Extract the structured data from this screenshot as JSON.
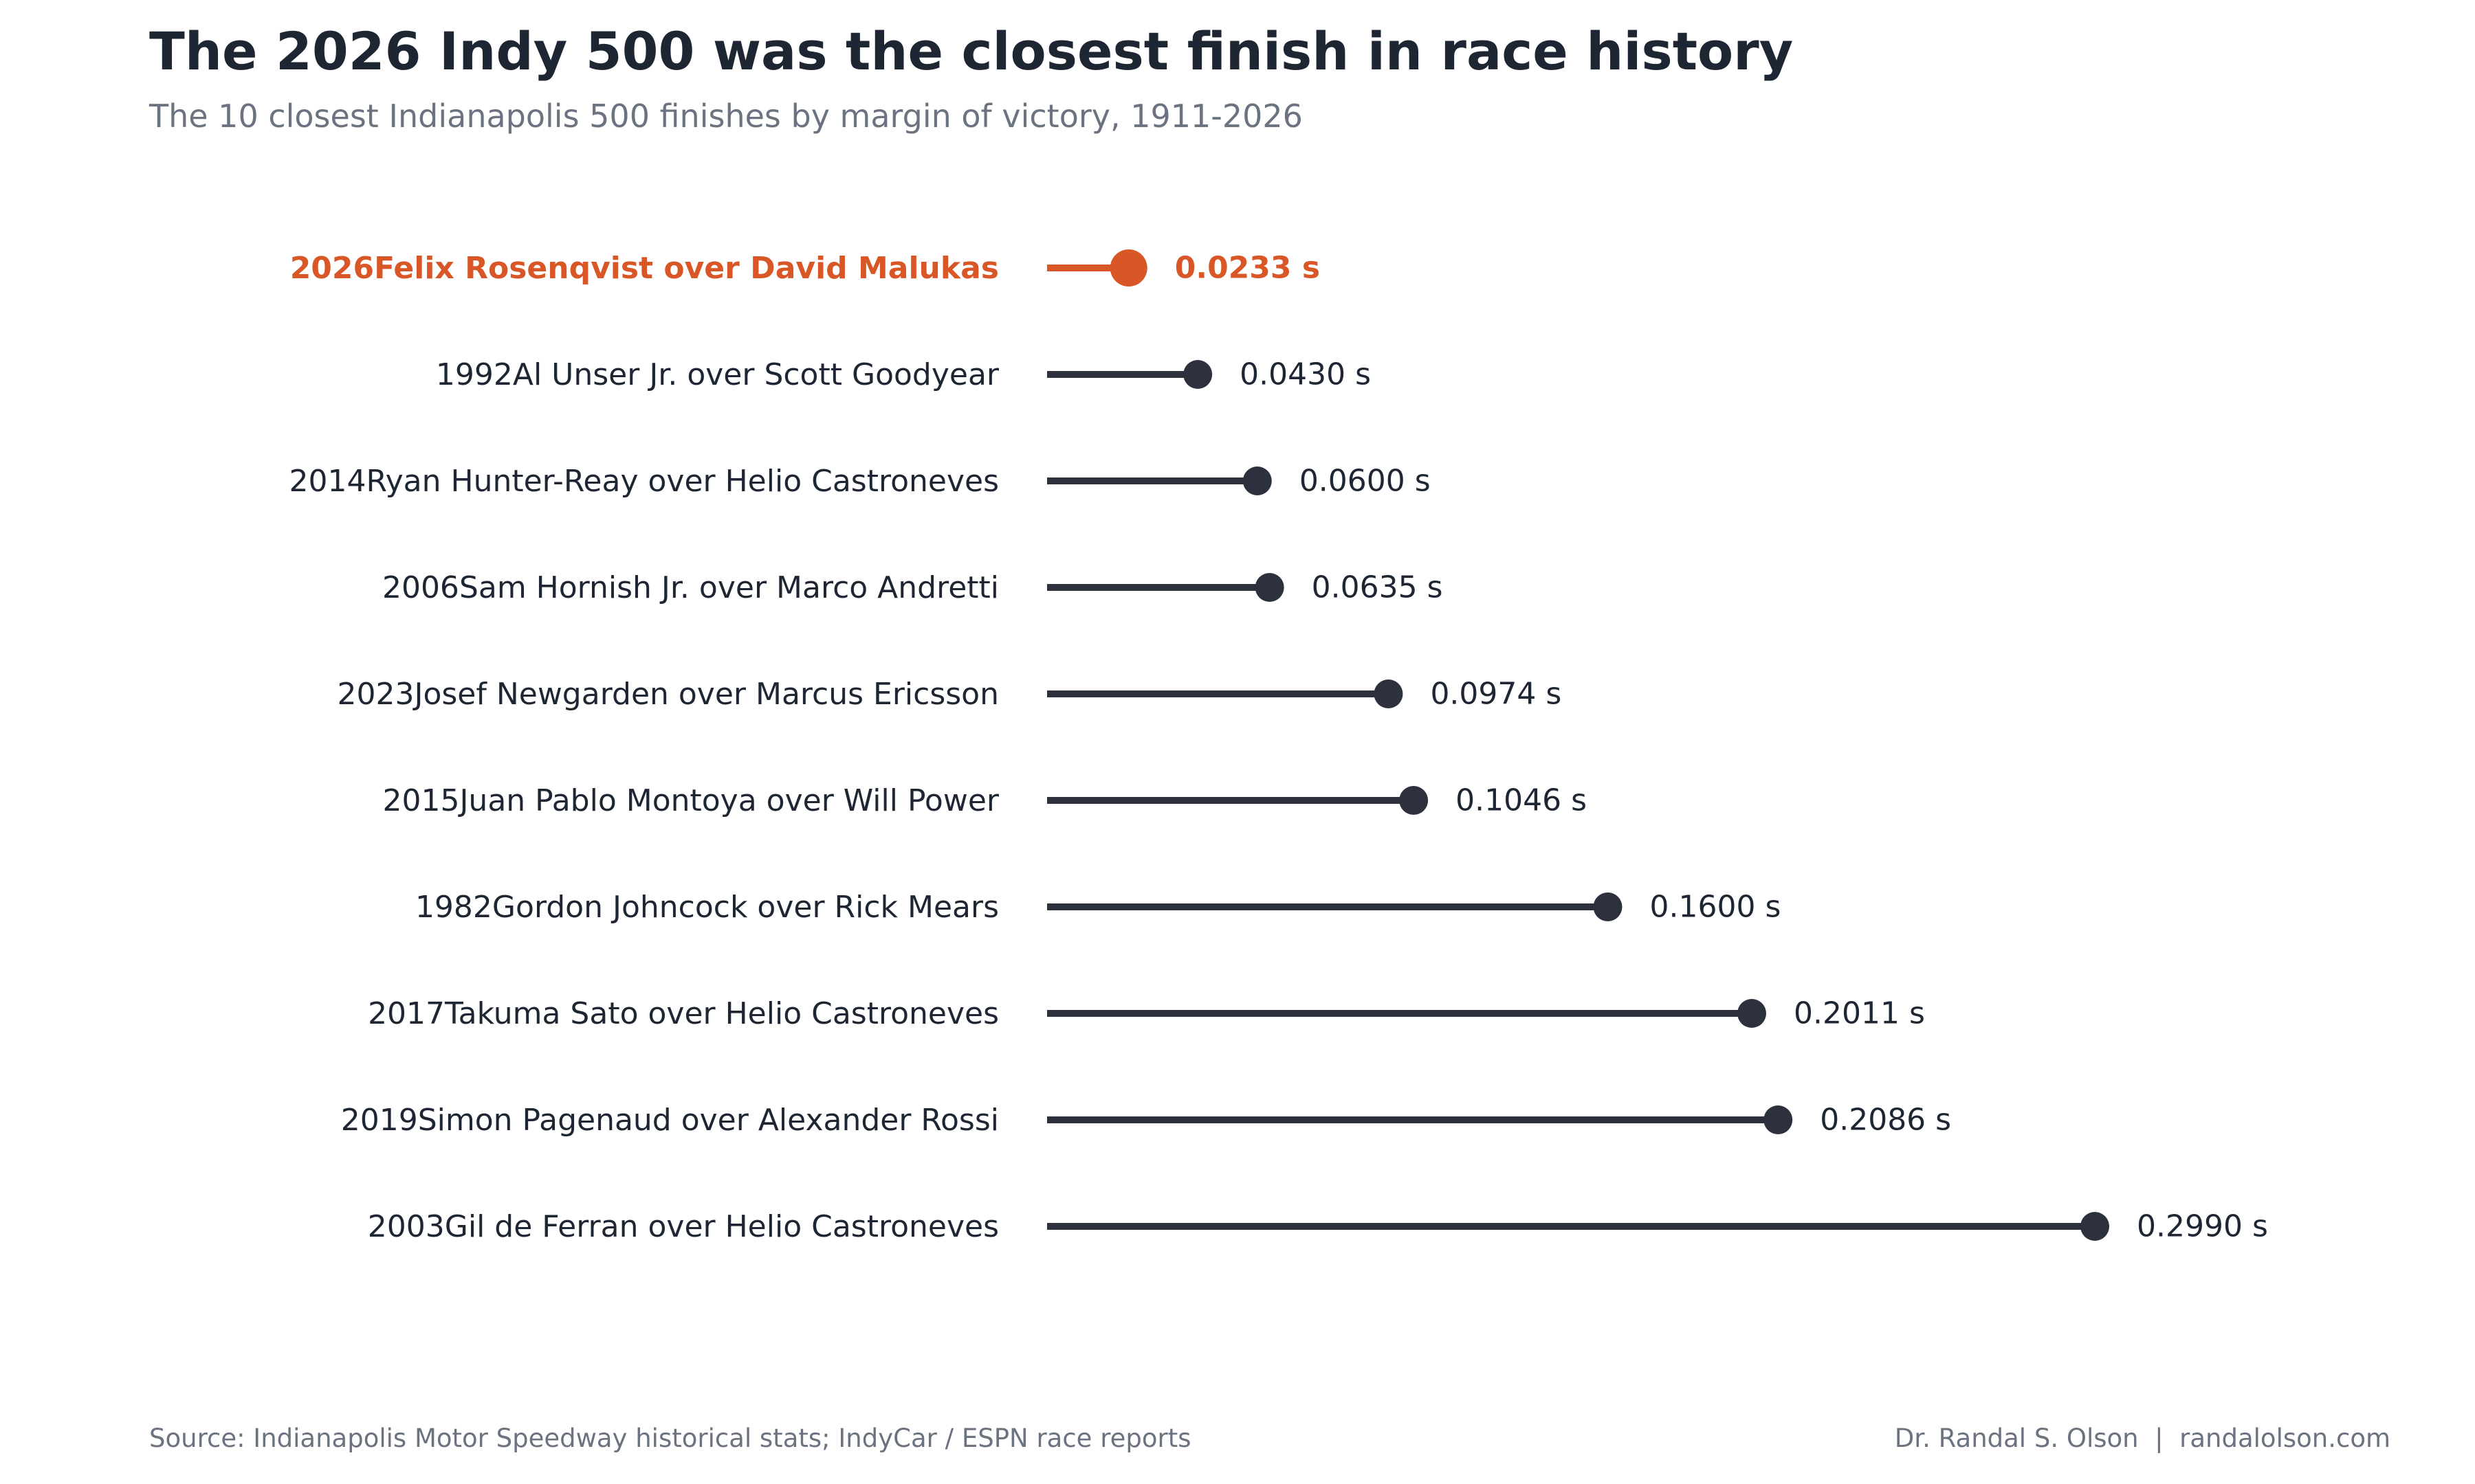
{
  "header": {
    "title": "The 2026 Indy 500 was the closest finish in race history",
    "subtitle": "The 10 closest Indianapolis 500 finishes by margin of victory, 1911-2026"
  },
  "footer": {
    "source": "Source: Indianapolis Motor Speedway historical stats; IndyCar / ESPN race reports",
    "author": "Dr. Randal S. Olson",
    "separator": "|",
    "site": "randalolson.com"
  },
  "colors": {
    "highlight": "#d95726",
    "default": "#2c313d",
    "label": "#1e2633",
    "muted": "#6b7280"
  },
  "chart_data": {
    "type": "lollipop",
    "unit": "s",
    "value_suffix": " s",
    "xlim": [
      0,
      0.3
    ],
    "grid": false,
    "highlight_index": 0,
    "rows": [
      {
        "year": "2026",
        "matchup": "Felix Rosenqvist over David Malukas",
        "value": 0.0233,
        "value_label": "0.0233 s"
      },
      {
        "year": "1992",
        "matchup": "Al Unser Jr. over Scott Goodyear",
        "value": 0.043,
        "value_label": "0.0430 s"
      },
      {
        "year": "2014",
        "matchup": "Ryan Hunter-Reay over Helio Castroneves",
        "value": 0.06,
        "value_label": "0.0600 s"
      },
      {
        "year": "2006",
        "matchup": "Sam Hornish Jr. over Marco Andretti",
        "value": 0.0635,
        "value_label": "0.0635 s"
      },
      {
        "year": "2023",
        "matchup": "Josef Newgarden over Marcus Ericsson",
        "value": 0.0974,
        "value_label": "0.0974 s"
      },
      {
        "year": "2015",
        "matchup": "Juan Pablo Montoya over Will Power",
        "value": 0.1046,
        "value_label": "0.1046 s"
      },
      {
        "year": "1982",
        "matchup": "Gordon Johncock over Rick Mears",
        "value": 0.16,
        "value_label": "0.1600 s"
      },
      {
        "year": "2017",
        "matchup": "Takuma Sato over Helio Castroneves",
        "value": 0.2011,
        "value_label": "0.2011 s"
      },
      {
        "year": "2019",
        "matchup": "Simon Pagenaud over Alexander Rossi",
        "value": 0.2086,
        "value_label": "0.2086 s"
      },
      {
        "year": "2003",
        "matchup": "Gil de Ferran over Helio Castroneves",
        "value": 0.299,
        "value_label": "0.2990 s"
      }
    ]
  }
}
